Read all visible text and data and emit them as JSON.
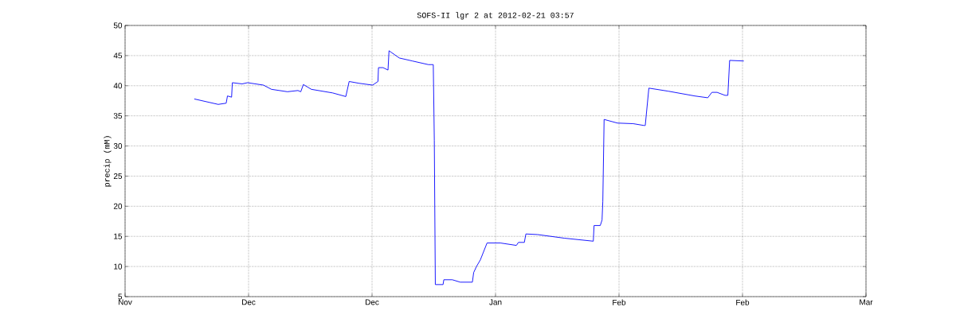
{
  "chart_data": {
    "type": "line",
    "title": "SOFS-II lgr 2 at 2012-02-21 03:57",
    "ylabel": "precip (mM)",
    "x": [
      "2011-11-24T05:00",
      "2011-11-28T02:00",
      "2011-11-29T09:00",
      "2011-11-29T14:00",
      "2011-11-30T06:00",
      "2011-11-30T09:00",
      "2011-12-01T23:00",
      "2011-12-02T20:00",
      "2011-12-05T10:00",
      "2011-12-06T17:00",
      "2011-12-09T07:00",
      "2011-12-11T00:00",
      "2011-12-11T11:00",
      "2011-12-11T21:00",
      "2011-12-13T04:00",
      "2011-12-16T15:00",
      "2011-12-18T18:00",
      "2011-12-19T07:00",
      "2011-12-20T22:00",
      "2011-12-23T02:00",
      "2011-12-23T23:00",
      "2011-12-24T01:00",
      "2011-12-24T19:00",
      "2011-12-25T14:00",
      "2011-12-25T18:00",
      "2011-12-27T10:00",
      "2011-12-29T13:00",
      "2012-01-01T03:00",
      "2012-01-01T22:00",
      "2012-01-02T02:00",
      "2012-01-02T06:00",
      "2012-01-03T12:00",
      "2012-01-03T15:00",
      "2012-01-05T00:00",
      "2012-01-06T07:00",
      "2012-01-08T06:00",
      "2012-01-08T11:00",
      "2012-01-08T22:00",
      "2012-01-09T13:00",
      "2012-01-10T15:00",
      "2012-01-12T19:00",
      "2012-01-15T09:00",
      "2012-01-15T17:00",
      "2012-01-16T16:00",
      "2012-01-16T22:00",
      "2012-01-18T19:00",
      "2012-01-23T03:00",
      "2012-01-27T20:00",
      "2012-01-27T23:00",
      "2012-01-28T23:00",
      "2012-01-29T06:00",
      "2012-01-29T09:00",
      "2012-01-29T14:00",
      "2012-01-31T18:00",
      "2012-02-03T07:00",
      "2012-02-05T01:00",
      "2012-02-05T06:00",
      "2012-02-05T20:00",
      "2012-02-08T22:00",
      "2012-02-13T06:00",
      "2012-02-15T09:00",
      "2012-02-16T01:00",
      "2012-02-16T21:00",
      "2012-02-18T04:00",
      "2012-02-18T15:00",
      "2012-02-18T22:00",
      "2012-02-21T05:00"
    ],
    "series": [
      {
        "color": "#0000ff",
        "values": [
          37.8,
          36.9,
          37.1,
          38.3,
          38.1,
          40.5,
          40.3,
          40.5,
          40.1,
          39.4,
          39.0,
          39.2,
          39.0,
          40.2,
          39.4,
          38.8,
          38.2,
          40.7,
          40.4,
          40.1,
          40.7,
          43.0,
          43.0,
          42.6,
          45.8,
          44.6,
          44.1,
          43.5,
          43.5,
          30.9,
          7.0,
          7.0,
          7.8,
          7.8,
          7.4,
          7.4,
          9.0,
          10.0,
          11.1,
          13.9,
          13.9,
          13.5,
          14.0,
          14.0,
          15.4,
          15.3,
          14.7,
          14.2,
          16.8,
          16.8,
          17.7,
          20.8,
          34.4,
          33.8,
          33.7,
          33.4,
          33.4,
          39.6,
          39.1,
          38.3,
          38.0,
          38.9,
          38.9,
          38.4,
          38.4,
          44.2,
          44.1
        ]
      }
    ],
    "xlim": [
      "2011-11-13",
      "2012-03-12"
    ],
    "xticks": [
      {
        "value": "2011-11-13",
        "label": "Nov"
      },
      {
        "value": "2011-12-03",
        "label": "Dec"
      },
      {
        "value": "2011-12-23",
        "label": "Dec"
      },
      {
        "value": "2012-01-12",
        "label": "Jan"
      },
      {
        "value": "2012-02-01",
        "label": "Feb"
      },
      {
        "value": "2012-02-21",
        "label": "Feb"
      },
      {
        "value": "2012-03-12",
        "label": "Mar"
      }
    ],
    "ylim": [
      5,
      50
    ],
    "yticks": [
      5,
      10,
      15,
      20,
      25,
      30,
      35,
      40,
      45,
      50
    ],
    "grid": true,
    "line_style": "solid",
    "marker": "none"
  }
}
